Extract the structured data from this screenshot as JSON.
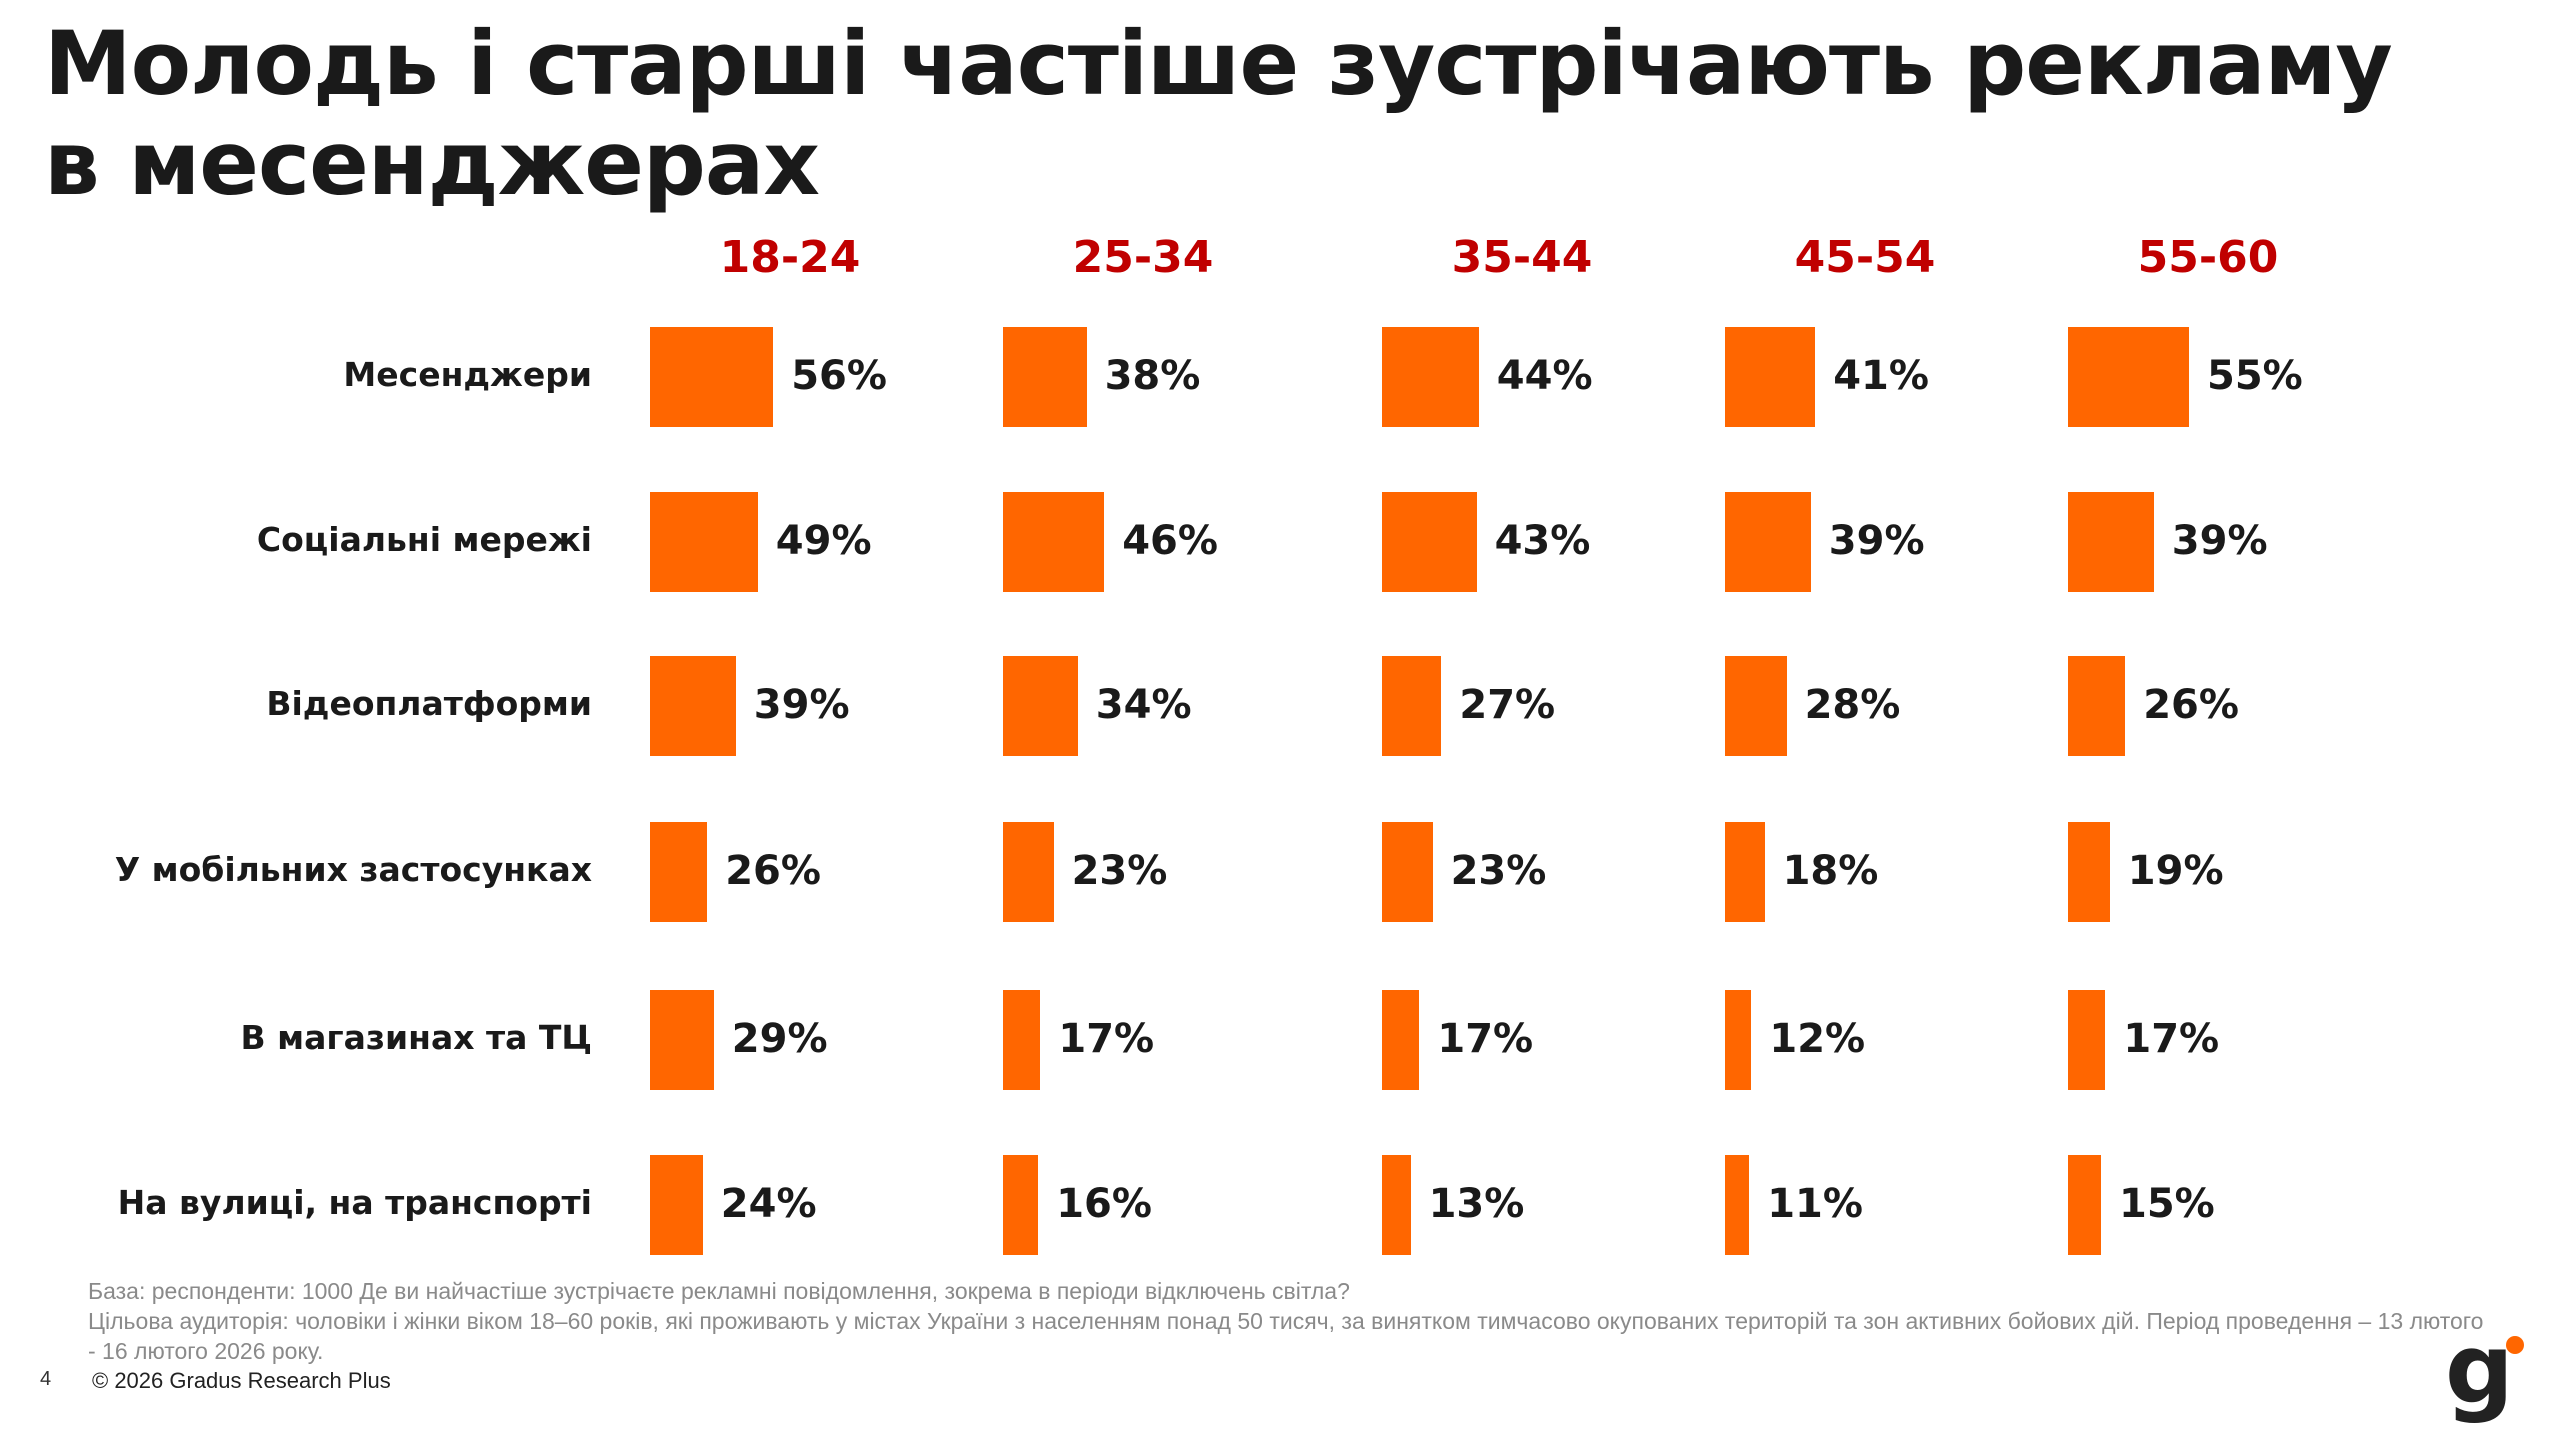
{
  "title": "Молодь і старші частіше зустрічають рекламу в месенджерах",
  "chart_data": {
    "type": "bar",
    "orientation": "horizontal",
    "categories": [
      "Месенджери",
      "Соціальні мережі",
      "Відеоплатформи",
      "У мобільних застосунках",
      "В магазинах та ТЦ",
      "На вулиці, на транспорті"
    ],
    "series": [
      {
        "name": "18-24",
        "values": [
          56,
          49,
          39,
          26,
          29,
          24
        ]
      },
      {
        "name": "25-34",
        "values": [
          38,
          46,
          34,
          23,
          17,
          16
        ]
      },
      {
        "name": "35-44",
        "values": [
          44,
          43,
          27,
          23,
          17,
          13
        ]
      },
      {
        "name": "45-54",
        "values": [
          41,
          39,
          28,
          18,
          12,
          11
        ]
      },
      {
        "name": "55-60",
        "values": [
          55,
          39,
          26,
          19,
          17,
          15
        ]
      }
    ],
    "unit": "%",
    "bar_color": "#ff6600",
    "header_color": "#c00000",
    "grid": false
  },
  "footer": {
    "base": "База: респонденти: 1000 Де ви найчастіше зустрічаєте рекламні повідомлення, зокрема в періоди відключень світла?",
    "audience": "Цільова аудиторія: чоловіки і жінки віком 18–60 років, які проживають у містах України з населенням понад 50 тисяч, за винятком тимчасово окупованих територій та зон активних бойових дій. Період проведення – 13 лютого - 16 лютого 2026 року.",
    "page": "4",
    "copyright": "© 2026 Gradus Research Plus"
  },
  "logo": {
    "text": "g",
    "dot_color": "#ff6600"
  }
}
